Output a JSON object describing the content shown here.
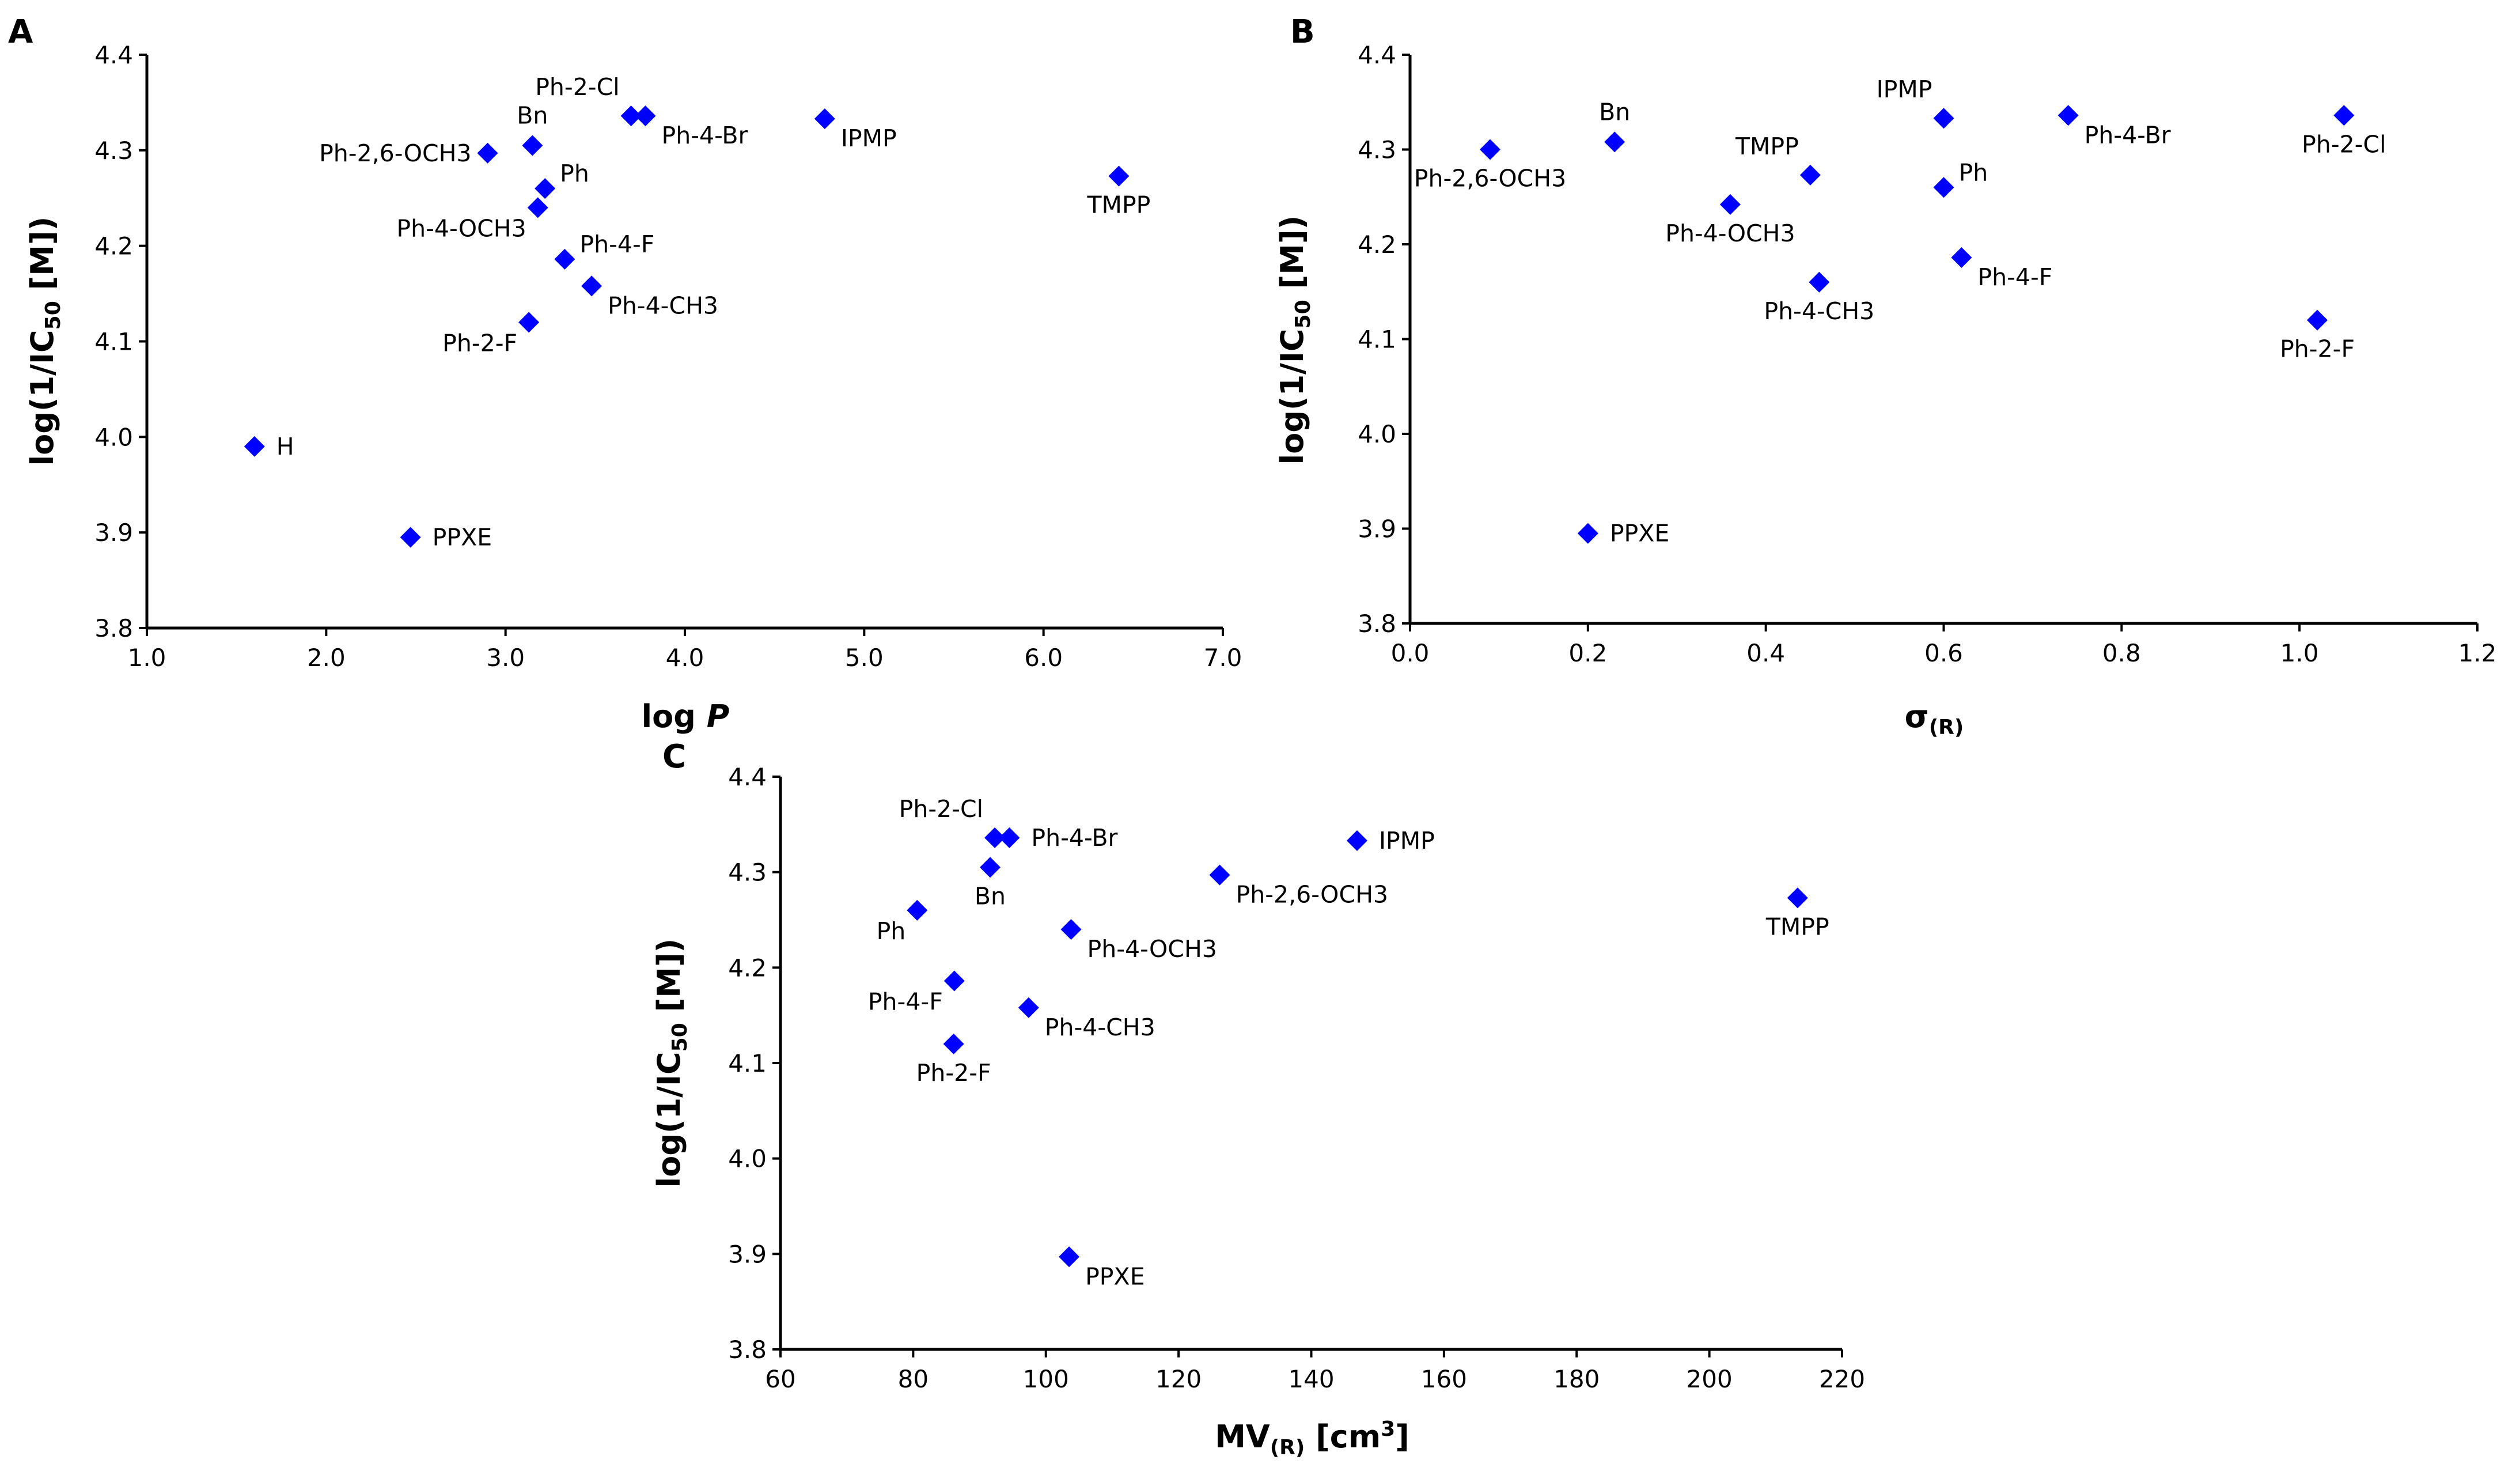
{
  "figure": {
    "panel_count": 3
  },
  "chart_data": [
    {
      "id": "A",
      "type": "scatter",
      "panel_letter": "A",
      "xlabel_main": "log ",
      "xlabel_italic": "P",
      "ylabel_main": "log(1/IC",
      "ylabel_sub": "50",
      "ylabel_tail": " [M])",
      "xlim": [
        1.0,
        7.0
      ],
      "ylim": [
        3.8,
        4.4
      ],
      "xticks": [
        1.0,
        2.0,
        3.0,
        4.0,
        5.0,
        6.0,
        7.0
      ],
      "yticks": [
        3.8,
        3.9,
        4.0,
        4.1,
        4.2,
        4.3,
        4.4
      ],
      "tick_decimals_x": 1,
      "tick_decimals_y": 1,
      "marker_color": "#0000ff",
      "points": [
        {
          "label": "H",
          "x": 1.6,
          "y": 3.99,
          "label_pos": "right"
        },
        {
          "label": "PPXE",
          "x": 2.47,
          "y": 3.895,
          "label_pos": "right"
        },
        {
          "label": "Ph-2,6-OCH3",
          "x": 2.9,
          "y": 4.297,
          "label_pos": "left"
        },
        {
          "label": "Bn",
          "x": 3.15,
          "y": 4.305,
          "label_pos": "above"
        },
        {
          "label": "Ph",
          "x": 3.22,
          "y": 4.26,
          "label_pos": "upper-right"
        },
        {
          "label": "Ph-4-OCH3",
          "x": 3.18,
          "y": 4.24,
          "label_pos": "lower-left"
        },
        {
          "label": "Ph-4-F",
          "x": 3.33,
          "y": 4.186,
          "label_pos": "upper-right"
        },
        {
          "label": "Ph-4-CH3",
          "x": 3.48,
          "y": 4.158,
          "label_pos": "lower-right"
        },
        {
          "label": "Ph-2-F",
          "x": 3.13,
          "y": 4.12,
          "label_pos": "lower-left"
        },
        {
          "label": "Ph-2-Cl",
          "x": 3.7,
          "y": 4.336,
          "label_pos": "upper-left"
        },
        {
          "label": "Ph-4-Br",
          "x": 3.78,
          "y": 4.336,
          "label_pos": "lower-right"
        },
        {
          "label": "IPMP",
          "x": 4.78,
          "y": 4.333,
          "label_pos": "lower-right"
        },
        {
          "label": "TMPP",
          "x": 6.42,
          "y": 4.273,
          "label_pos": "below"
        }
      ]
    },
    {
      "id": "B",
      "type": "scatter",
      "panel_letter": "B",
      "xlabel_main": "σ",
      "xlabel_sub": "(R)",
      "ylabel_main": "log(1/IC",
      "ylabel_sub": "50",
      "ylabel_tail": " [M])",
      "xlim": [
        0.0,
        1.2
      ],
      "ylim": [
        3.8,
        4.4
      ],
      "xticks": [
        0.0,
        0.2,
        0.4,
        0.6,
        0.8,
        1.0,
        1.2
      ],
      "yticks": [
        3.8,
        3.9,
        4.0,
        4.1,
        4.2,
        4.3,
        4.4
      ],
      "tick_decimals_x": 1,
      "tick_decimals_y": 1,
      "marker_color": "#0000ff",
      "points": [
        {
          "label": "Ph-2,6-OCH3",
          "x": 0.09,
          "y": 4.3,
          "label_pos": "below"
        },
        {
          "label": "Bn",
          "x": 0.23,
          "y": 4.308,
          "label_pos": "above"
        },
        {
          "label": "PPXE",
          "x": 0.2,
          "y": 3.895,
          "label_pos": "right"
        },
        {
          "label": "Ph-4-OCH3",
          "x": 0.36,
          "y": 4.242,
          "label_pos": "below"
        },
        {
          "label": "TMPP",
          "x": 0.45,
          "y": 4.273,
          "label_pos": "upper-left"
        },
        {
          "label": "Ph-4-CH3",
          "x": 0.46,
          "y": 4.16,
          "label_pos": "below"
        },
        {
          "label": "IPMP",
          "x": 0.6,
          "y": 4.333,
          "label_pos": "upper-left"
        },
        {
          "label": "Ph",
          "x": 0.6,
          "y": 4.26,
          "label_pos": "upper-right"
        },
        {
          "label": "Ph-4-F",
          "x": 0.62,
          "y": 4.186,
          "label_pos": "lower-right"
        },
        {
          "label": "Ph-4-Br",
          "x": 0.74,
          "y": 4.336,
          "label_pos": "lower-right"
        },
        {
          "label": "Ph-2-Cl",
          "x": 1.05,
          "y": 4.336,
          "label_pos": "below"
        },
        {
          "label": "Ph-2-F",
          "x": 1.02,
          "y": 4.12,
          "label_pos": "below"
        }
      ]
    },
    {
      "id": "C",
      "type": "scatter",
      "panel_letter": "C",
      "xlabel_main": "MV",
      "xlabel_sub": "(R)",
      "xlabel_tail": " [cm",
      "xlabel_sup": "3",
      "xlabel_end": "]",
      "ylabel_main": "log(1/IC",
      "ylabel_sub": "50",
      "ylabel_tail": " [M])",
      "xlim": [
        60,
        220
      ],
      "ylim": [
        3.8,
        4.4
      ],
      "xticks": [
        60,
        80,
        100,
        120,
        140,
        160,
        180,
        200,
        220
      ],
      "yticks": [
        3.8,
        3.9,
        4.0,
        4.1,
        4.2,
        4.3,
        4.4
      ],
      "tick_decimals_x": 0,
      "tick_decimals_y": 1,
      "marker_color": "#0000ff",
      "points": [
        {
          "label": "Ph-2-Cl",
          "x": 92.3,
          "y": 4.336,
          "label_pos": "upper-left"
        },
        {
          "label": "Ph-4-Br",
          "x": 94.5,
          "y": 4.336,
          "label_pos": "right"
        },
        {
          "label": "Bn",
          "x": 91.6,
          "y": 4.305,
          "label_pos": "below"
        },
        {
          "label": "Ph",
          "x": 80.6,
          "y": 4.26,
          "label_pos": "lower-left"
        },
        {
          "label": "Ph-2,6-OCH3",
          "x": 126.2,
          "y": 4.297,
          "label_pos": "lower-right"
        },
        {
          "label": "Ph-4-OCH3",
          "x": 103.8,
          "y": 4.24,
          "label_pos": "lower-right"
        },
        {
          "label": "Ph-4-F",
          "x": 86.2,
          "y": 4.186,
          "label_pos": "lower-left"
        },
        {
          "label": "Ph-4-CH3",
          "x": 97.4,
          "y": 4.158,
          "label_pos": "lower-right"
        },
        {
          "label": "Ph-2-F",
          "x": 86.1,
          "y": 4.12,
          "label_pos": "below"
        },
        {
          "label": "IPMP",
          "x": 146.9,
          "y": 4.333,
          "label_pos": "right"
        },
        {
          "label": "TMPP",
          "x": 213.3,
          "y": 4.273,
          "label_pos": "below"
        },
        {
          "label": "PPXE",
          "x": 103.5,
          "y": 3.897,
          "label_pos": "lower-right"
        }
      ]
    }
  ]
}
